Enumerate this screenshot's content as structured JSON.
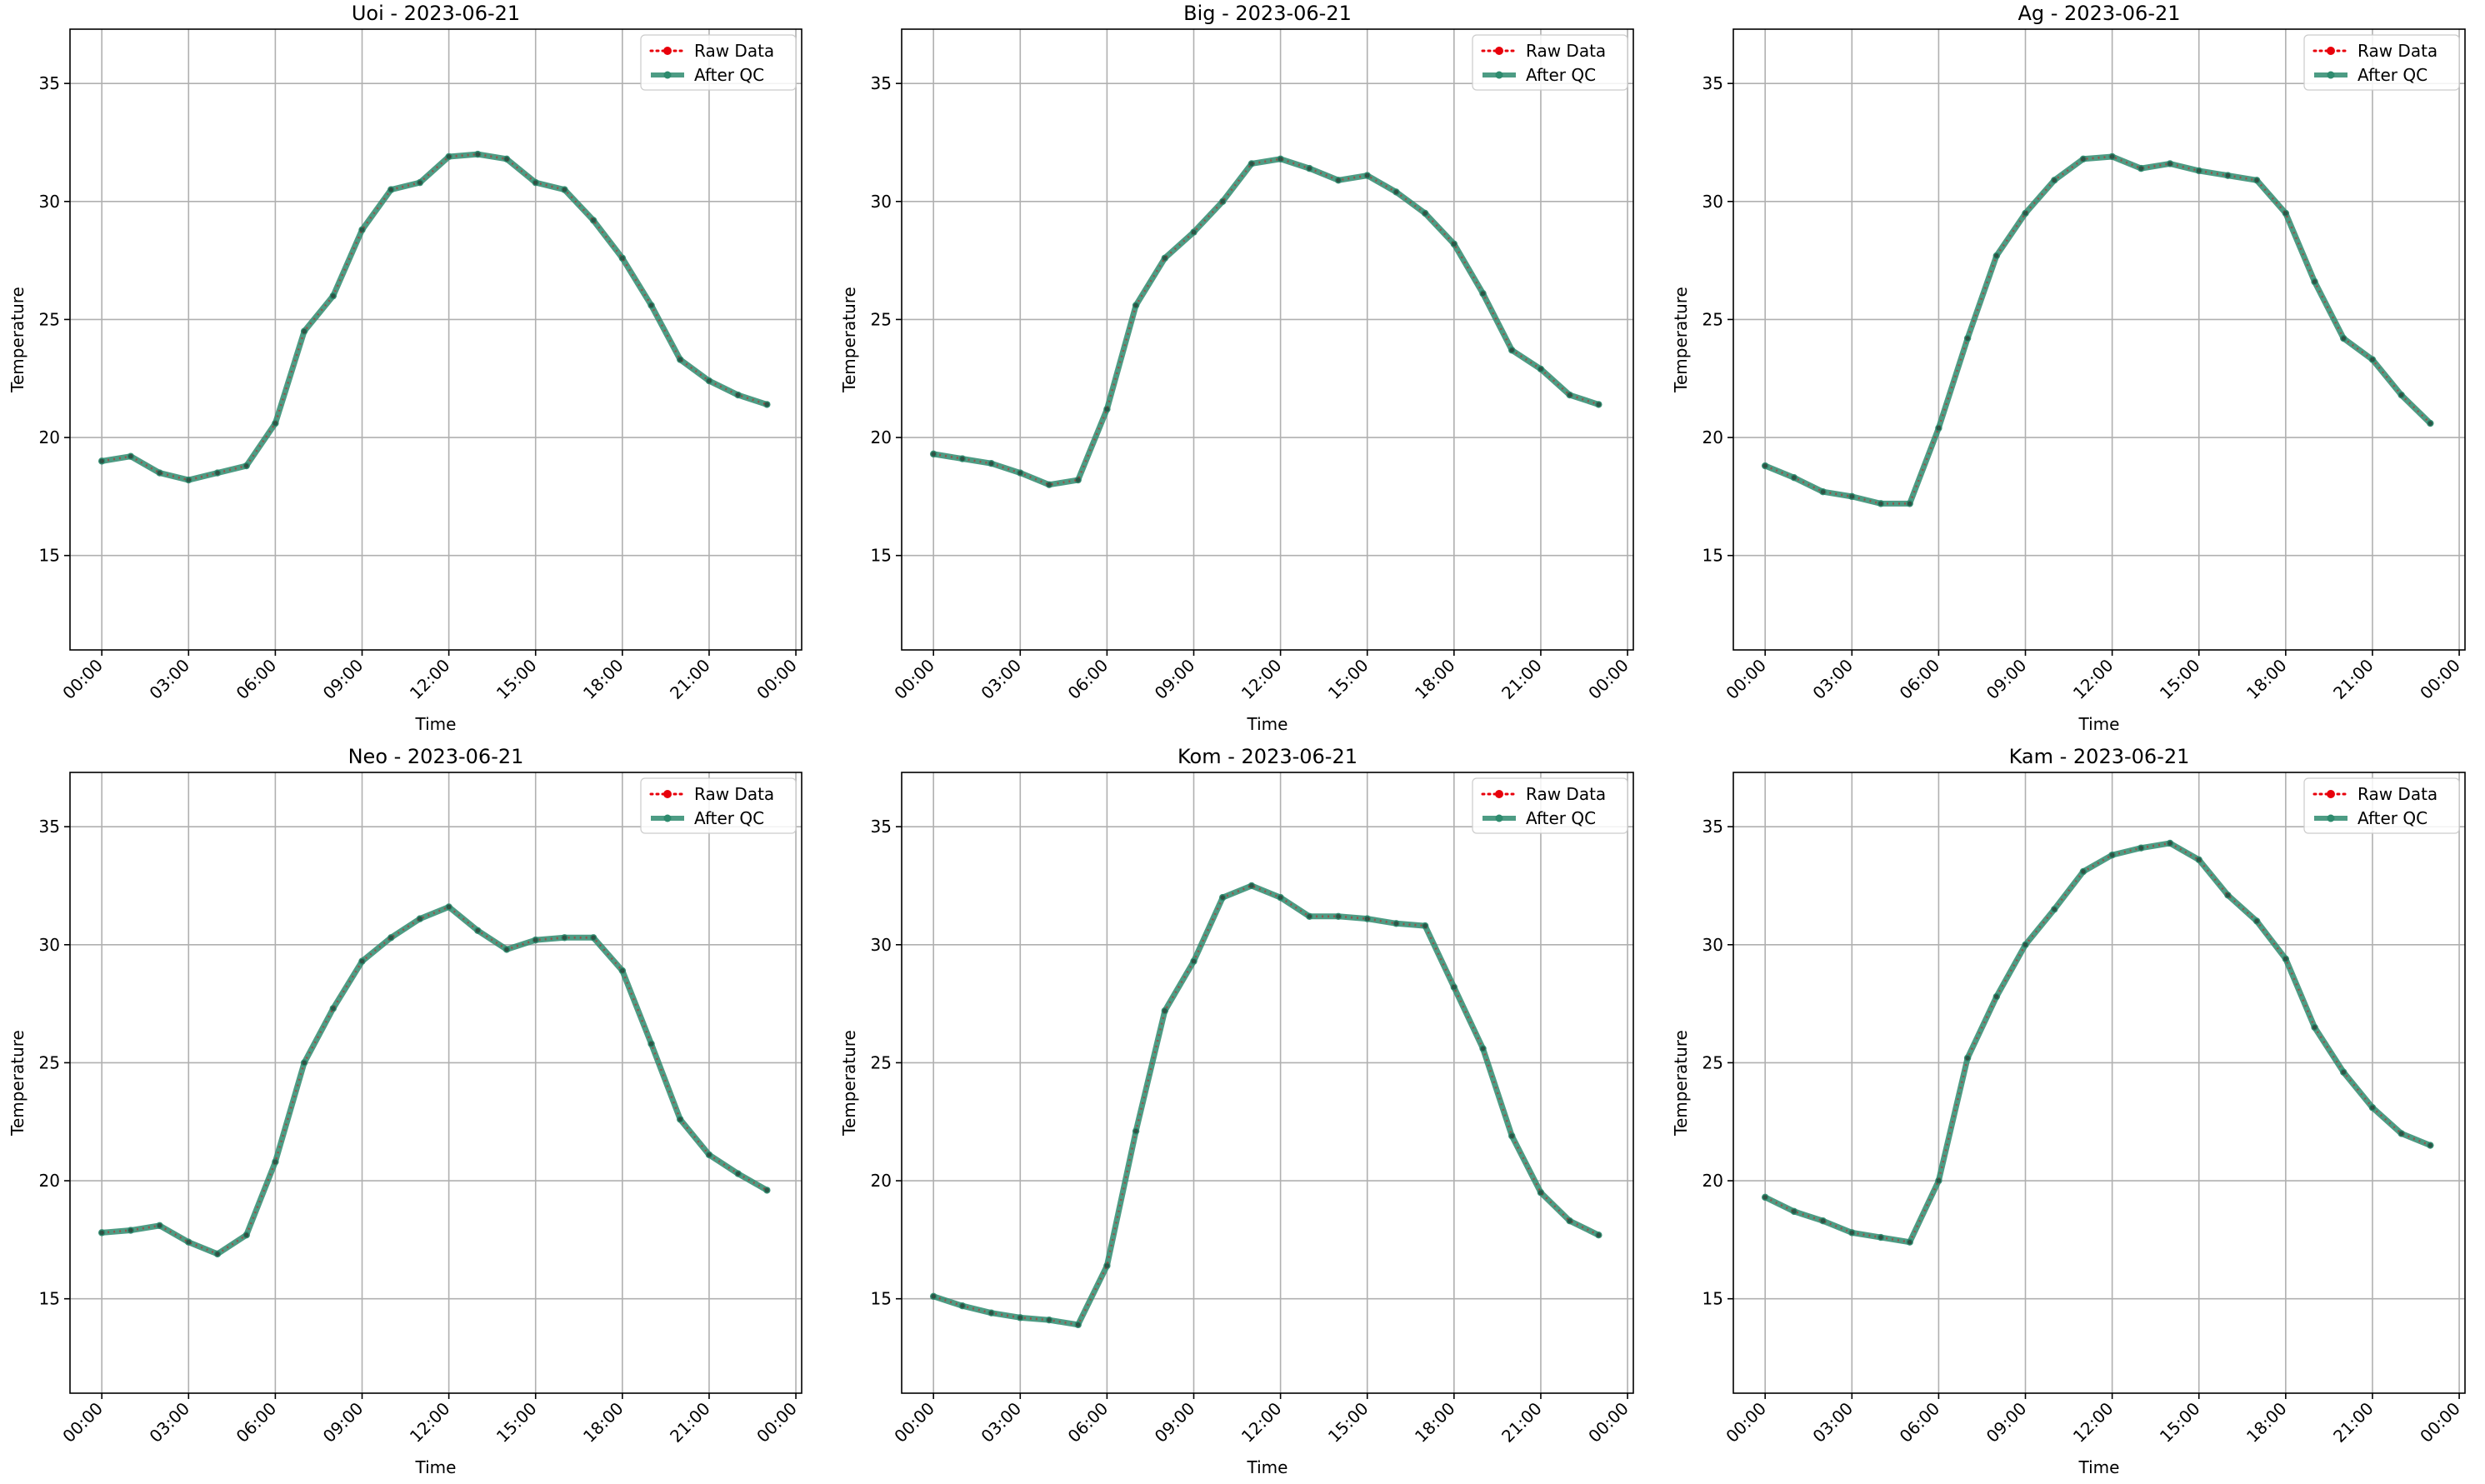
{
  "figure": {
    "axis_xlabel": "Time",
    "axis_ylabel": "Temperature",
    "legend": {
      "raw_label": "Raw Data",
      "qc_label": "After QC"
    },
    "colors": {
      "raw": "#e8000b",
      "qc": "#2e8b6e",
      "grid": "#b0b0b0"
    }
  },
  "chart_data": [
    {
      "type": "line",
      "title": "Uoi - 2023-06-21",
      "xlabel": "Time",
      "ylabel": "Temperature",
      "x": [
        "00:00",
        "01:00",
        "02:00",
        "03:00",
        "04:00",
        "05:00",
        "06:00",
        "07:00",
        "08:00",
        "09:00",
        "10:00",
        "11:00",
        "12:00",
        "13:00",
        "14:00",
        "15:00",
        "16:00",
        "17:00",
        "18:00",
        "19:00",
        "20:00",
        "21:00",
        "22:00",
        "23:00"
      ],
      "xticks": [
        "00:00",
        "03:00",
        "06:00",
        "09:00",
        "12:00",
        "15:00",
        "18:00",
        "21:00",
        "00:00"
      ],
      "yticks": [
        15,
        20,
        25,
        30,
        35
      ],
      "ylim": [
        11,
        37.3
      ],
      "grid": true,
      "legend_position": "top-right",
      "series": [
        {
          "name": "Raw Data",
          "values": [
            19.0,
            19.2,
            18.5,
            18.2,
            18.5,
            18.8,
            20.6,
            24.5,
            26.0,
            28.8,
            30.5,
            30.8,
            31.9,
            32.0,
            31.8,
            30.8,
            30.5,
            29.2,
            27.6,
            25.6,
            23.3,
            22.4,
            21.8,
            21.4
          ]
        },
        {
          "name": "After QC",
          "values": [
            19.0,
            19.2,
            18.5,
            18.2,
            18.5,
            18.8,
            20.6,
            24.5,
            26.0,
            28.8,
            30.5,
            30.8,
            31.9,
            32.0,
            31.8,
            30.8,
            30.5,
            29.2,
            27.6,
            25.6,
            23.3,
            22.4,
            21.8,
            21.4
          ]
        }
      ]
    },
    {
      "type": "line",
      "title": "Big - 2023-06-21",
      "xlabel": "Time",
      "ylabel": "Temperature",
      "x": [
        "00:00",
        "01:00",
        "02:00",
        "03:00",
        "04:00",
        "05:00",
        "06:00",
        "07:00",
        "08:00",
        "09:00",
        "10:00",
        "11:00",
        "12:00",
        "13:00",
        "14:00",
        "15:00",
        "16:00",
        "17:00",
        "18:00",
        "19:00",
        "20:00",
        "21:00",
        "22:00",
        "23:00"
      ],
      "xticks": [
        "00:00",
        "03:00",
        "06:00",
        "09:00",
        "12:00",
        "15:00",
        "18:00",
        "21:00",
        "00:00"
      ],
      "yticks": [
        15,
        20,
        25,
        30,
        35
      ],
      "ylim": [
        11,
        37.3
      ],
      "grid": true,
      "legend_position": "top-right",
      "series": [
        {
          "name": "Raw Data",
          "values": [
            19.3,
            19.1,
            18.9,
            18.5,
            18.0,
            18.2,
            21.2,
            25.6,
            27.6,
            28.7,
            30.0,
            31.6,
            31.8,
            31.4,
            30.9,
            31.1,
            30.4,
            29.5,
            28.2,
            26.1,
            23.7,
            22.9,
            21.8,
            21.4
          ]
        },
        {
          "name": "After QC",
          "values": [
            19.3,
            19.1,
            18.9,
            18.5,
            18.0,
            18.2,
            21.2,
            25.6,
            27.6,
            28.7,
            30.0,
            31.6,
            31.8,
            31.4,
            30.9,
            31.1,
            30.4,
            29.5,
            28.2,
            26.1,
            23.7,
            22.9,
            21.8,
            21.4
          ]
        }
      ]
    },
    {
      "type": "line",
      "title": "Ag - 2023-06-21",
      "xlabel": "Time",
      "ylabel": "Temperature",
      "x": [
        "00:00",
        "01:00",
        "02:00",
        "03:00",
        "04:00",
        "05:00",
        "06:00",
        "07:00",
        "08:00",
        "09:00",
        "10:00",
        "11:00",
        "12:00",
        "13:00",
        "14:00",
        "15:00",
        "16:00",
        "17:00",
        "18:00",
        "19:00",
        "20:00",
        "21:00",
        "22:00",
        "23:00"
      ],
      "xticks": [
        "00:00",
        "03:00",
        "06:00",
        "09:00",
        "12:00",
        "15:00",
        "18:00",
        "21:00",
        "00:00"
      ],
      "yticks": [
        15,
        20,
        25,
        30,
        35
      ],
      "ylim": [
        11,
        37.3
      ],
      "grid": true,
      "legend_position": "top-right",
      "series": [
        {
          "name": "Raw Data",
          "values": [
            18.8,
            18.3,
            17.7,
            17.5,
            17.2,
            17.2,
            20.4,
            24.2,
            27.7,
            29.5,
            30.9,
            31.8,
            31.9,
            31.4,
            31.6,
            31.3,
            31.1,
            30.9,
            29.5,
            26.6,
            24.2,
            23.3,
            21.8,
            20.6
          ]
        },
        {
          "name": "After QC",
          "values": [
            18.8,
            18.3,
            17.7,
            17.5,
            17.2,
            17.2,
            20.4,
            24.2,
            27.7,
            29.5,
            30.9,
            31.8,
            31.9,
            31.4,
            31.6,
            31.3,
            31.1,
            30.9,
            29.5,
            26.6,
            24.2,
            23.3,
            21.8,
            20.6
          ]
        }
      ]
    },
    {
      "type": "line",
      "title": "Neo - 2023-06-21",
      "xlabel": "Time",
      "ylabel": "Temperature",
      "x": [
        "00:00",
        "01:00",
        "02:00",
        "03:00",
        "04:00",
        "05:00",
        "06:00",
        "07:00",
        "08:00",
        "09:00",
        "10:00",
        "11:00",
        "12:00",
        "13:00",
        "14:00",
        "15:00",
        "16:00",
        "17:00",
        "18:00",
        "19:00",
        "20:00",
        "21:00",
        "22:00",
        "23:00"
      ],
      "xticks": [
        "00:00",
        "03:00",
        "06:00",
        "09:00",
        "12:00",
        "15:00",
        "18:00",
        "21:00",
        "00:00"
      ],
      "yticks": [
        15,
        20,
        25,
        30,
        35
      ],
      "ylim": [
        11,
        37.3
      ],
      "grid": true,
      "legend_position": "top-right",
      "series": [
        {
          "name": "Raw Data",
          "values": [
            17.8,
            17.9,
            18.1,
            17.4,
            16.9,
            17.7,
            20.8,
            25.0,
            27.3,
            29.3,
            30.3,
            31.1,
            31.6,
            30.6,
            29.8,
            30.2,
            30.3,
            30.3,
            28.9,
            25.8,
            22.6,
            21.1,
            20.3,
            19.6
          ]
        },
        {
          "name": "After QC",
          "values": [
            17.8,
            17.9,
            18.1,
            17.4,
            16.9,
            17.7,
            20.8,
            25.0,
            27.3,
            29.3,
            30.3,
            31.1,
            31.6,
            30.6,
            29.8,
            30.2,
            30.3,
            30.3,
            28.9,
            25.8,
            22.6,
            21.1,
            20.3,
            19.6
          ]
        }
      ]
    },
    {
      "type": "line",
      "title": "Kom - 2023-06-21",
      "xlabel": "Time",
      "ylabel": "Temperature",
      "x": [
        "00:00",
        "01:00",
        "02:00",
        "03:00",
        "04:00",
        "05:00",
        "06:00",
        "07:00",
        "08:00",
        "09:00",
        "10:00",
        "11:00",
        "12:00",
        "13:00",
        "14:00",
        "15:00",
        "16:00",
        "17:00",
        "18:00",
        "19:00",
        "20:00",
        "21:00",
        "22:00",
        "23:00"
      ],
      "xticks": [
        "00:00",
        "03:00",
        "06:00",
        "09:00",
        "12:00",
        "15:00",
        "18:00",
        "21:00",
        "00:00"
      ],
      "yticks": [
        15,
        20,
        25,
        30,
        35
      ],
      "ylim": [
        11,
        37.3
      ],
      "grid": true,
      "legend_position": "top-right",
      "series": [
        {
          "name": "Raw Data",
          "values": [
            15.1,
            14.7,
            14.4,
            14.2,
            14.1,
            13.9,
            16.4,
            22.1,
            27.2,
            29.3,
            32.0,
            32.5,
            32.0,
            31.2,
            31.2,
            31.1,
            30.9,
            30.8,
            28.2,
            25.6,
            21.9,
            19.5,
            18.3,
            17.7
          ]
        },
        {
          "name": "After QC",
          "values": [
            15.1,
            14.7,
            14.4,
            14.2,
            14.1,
            13.9,
            16.4,
            22.1,
            27.2,
            29.3,
            32.0,
            32.5,
            32.0,
            31.2,
            31.2,
            31.1,
            30.9,
            30.8,
            28.2,
            25.6,
            21.9,
            19.5,
            18.3,
            17.7
          ]
        }
      ]
    },
    {
      "type": "line",
      "title": "Kam - 2023-06-21",
      "xlabel": "Time",
      "ylabel": "Temperature",
      "x": [
        "00:00",
        "01:00",
        "02:00",
        "03:00",
        "04:00",
        "05:00",
        "06:00",
        "07:00",
        "08:00",
        "09:00",
        "10:00",
        "11:00",
        "12:00",
        "13:00",
        "14:00",
        "15:00",
        "16:00",
        "17:00",
        "18:00",
        "19:00",
        "20:00",
        "21:00",
        "22:00",
        "23:00"
      ],
      "xticks": [
        "00:00",
        "03:00",
        "06:00",
        "09:00",
        "12:00",
        "15:00",
        "18:00",
        "21:00",
        "00:00"
      ],
      "yticks": [
        15,
        20,
        25,
        30,
        35
      ],
      "ylim": [
        11,
        37.3
      ],
      "grid": true,
      "legend_position": "top-right",
      "series": [
        {
          "name": "Raw Data",
          "values": [
            19.3,
            18.7,
            18.3,
            17.8,
            17.6,
            17.4,
            20.0,
            25.2,
            27.8,
            30.0,
            31.5,
            33.1,
            33.8,
            34.1,
            34.3,
            33.6,
            32.1,
            31.0,
            29.4,
            26.5,
            24.6,
            23.1,
            22.0,
            21.5
          ]
        },
        {
          "name": "After QC",
          "values": [
            19.3,
            18.7,
            18.3,
            17.8,
            17.6,
            17.4,
            20.0,
            25.2,
            27.8,
            30.0,
            31.5,
            33.1,
            33.8,
            34.1,
            34.3,
            33.6,
            32.1,
            31.0,
            29.4,
            26.5,
            24.6,
            23.1,
            22.0,
            21.5
          ]
        }
      ]
    }
  ]
}
